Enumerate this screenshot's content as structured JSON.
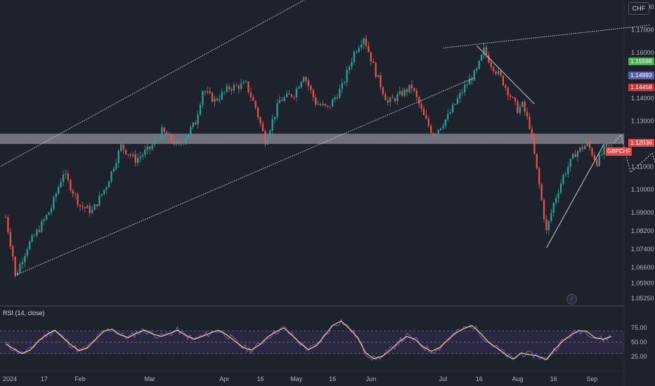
{
  "chart_data": {
    "type": "candlestick",
    "symbol": "GBPCHF",
    "currency": "CHF",
    "x_tick_labels": [
      "2024",
      "17",
      "Feb",
      "Mar",
      "Apr",
      "16",
      "May",
      "16",
      "Jun",
      "Jul",
      "16",
      "Aug",
      "16",
      "Sep"
    ],
    "y_tick_labels": [
      "1.18000",
      "1.17000",
      "1.16000",
      "1.14000",
      "1.13000",
      "1.11000",
      "1.10000",
      "1.09000",
      "1.08200",
      "1.07400",
      "1.06600",
      "1.05900",
      "1.05250"
    ],
    "ylim": [
      1.05,
      1.183
    ],
    "price_labels": [
      {
        "value": "1.15598",
        "color": "#4caf50"
      },
      {
        "value": "1.14993",
        "color": "#5b5fa8"
      },
      {
        "value": "1.14458",
        "color": "#c0393b"
      }
    ],
    "last_price": {
      "ticker": "GBPCHF",
      "value": "1.12036",
      "color": "#e24a4a"
    },
    "price_path": [
      [
        "2024-01-01",
        1.088
      ],
      [
        "2024-01-04",
        1.071
      ],
      [
        "2024-01-05",
        1.062
      ],
      [
        "2024-01-10",
        1.075
      ],
      [
        "2024-01-15",
        1.083
      ],
      [
        "2024-01-20",
        1.092
      ],
      [
        "2024-01-25",
        1.1075
      ],
      [
        "2024-02-01",
        1.093
      ],
      [
        "2024-02-06",
        1.0905
      ],
      [
        "2024-02-12",
        1.102
      ],
      [
        "2024-02-18",
        1.119
      ],
      [
        "2024-02-24",
        1.113
      ],
      [
        "2024-03-01",
        1.118
      ],
      [
        "2024-03-06",
        1.1255
      ],
      [
        "2024-03-13",
        1.119
      ],
      [
        "2024-03-20",
        1.1295
      ],
      [
        "2024-03-23",
        1.1435
      ],
      [
        "2024-03-28",
        1.139
      ],
      [
        "2024-04-03",
        1.1445
      ],
      [
        "2024-04-10",
        1.146
      ],
      [
        "2024-04-14",
        1.136
      ],
      [
        "2024-04-18",
        1.1215
      ],
      [
        "2024-04-24",
        1.139
      ],
      [
        "2024-04-30",
        1.142
      ],
      [
        "2024-05-04",
        1.1505
      ],
      [
        "2024-05-09",
        1.138
      ],
      [
        "2024-05-14",
        1.1355
      ],
      [
        "2024-05-20",
        1.145
      ],
      [
        "2024-05-25",
        1.16
      ],
      [
        "2024-05-29",
        1.167
      ],
      [
        "2024-06-03",
        1.151
      ],
      [
        "2024-06-08",
        1.138
      ],
      [
        "2024-06-18",
        1.145
      ],
      [
        "2024-06-23",
        1.132
      ],
      [
        "2024-06-27",
        1.124
      ],
      [
        "2024-07-03",
        1.132
      ],
      [
        "2024-07-10",
        1.145
      ],
      [
        "2024-07-15",
        1.152
      ],
      [
        "2024-07-18",
        1.161
      ],
      [
        "2024-07-21",
        1.155
      ],
      [
        "2024-07-25",
        1.149
      ],
      [
        "2024-08-01",
        1.135
      ],
      [
        "2024-08-03",
        1.137
      ],
      [
        "2024-08-06",
        1.128
      ],
      [
        "2024-08-10",
        1.102
      ],
      [
        "2024-08-13",
        1.0815
      ],
      [
        "2024-08-16",
        1.094
      ],
      [
        "2024-08-20",
        1.106
      ],
      [
        "2024-08-25",
        1.116
      ],
      [
        "2024-08-30",
        1.12
      ],
      [
        "2024-09-03",
        1.112
      ],
      [
        "2024-09-07",
        1.119
      ],
      [
        "2024-09-09",
        1.1203
      ]
    ],
    "projection": [
      [
        "2024-09-10",
        1.1205
      ],
      [
        "2024-09-13",
        1.124
      ],
      [
        "2024-09-17",
        1.1075
      ],
      [
        "2024-09-26",
        1.116
      ],
      [
        "2024-10-08",
        1.0745
      ]
    ],
    "support_zone": [
      1.12,
      1.1245
    ],
    "channel_lines": [
      {
        "from": [
          "2023-12-20",
          1.1045
        ],
        "to": [
          "2024-06-27",
          1.214
        ]
      },
      {
        "from": [
          "2024-01-05",
          1.0625
        ],
        "to": [
          "2024-07-14",
          1.149
        ]
      },
      {
        "from": [
          "2024-07-01",
          1.162
        ],
        "to": [
          "2024-09-25",
          1.172
        ]
      }
    ],
    "trend_lines": [
      {
        "from": [
          "2024-07-15",
          1.163
        ],
        "to": [
          "2024-08-08",
          1.1375
        ]
      },
      {
        "from": [
          "2024-08-13",
          1.0745
        ],
        "to": [
          "2024-09-06",
          1.12
        ]
      }
    ],
    "rsi": {
      "title": "RSI (14, close)",
      "tick_labels": [
        "75.00",
        "50.00",
        "25.00"
      ],
      "levels": [
        70,
        50,
        30
      ],
      "ylim": [
        10,
        95
      ],
      "values": [
        47,
        38,
        30,
        36,
        52,
        63,
        71,
        58,
        45,
        35,
        40,
        55,
        69,
        73,
        63,
        58,
        66,
        71,
        64,
        60,
        65,
        71,
        62,
        55,
        60,
        66,
        71,
        63,
        52,
        41,
        36,
        45,
        59,
        68,
        75,
        62,
        48,
        37,
        44,
        62,
        80,
        87,
        74,
        58,
        31,
        21,
        25,
        36,
        50,
        60,
        55,
        42,
        34,
        40,
        54,
        66,
        74,
        79,
        66,
        50,
        40,
        29,
        20,
        31,
        28,
        26,
        19,
        36,
        51,
        62,
        70,
        69,
        58,
        55,
        60
      ]
    }
  }
}
